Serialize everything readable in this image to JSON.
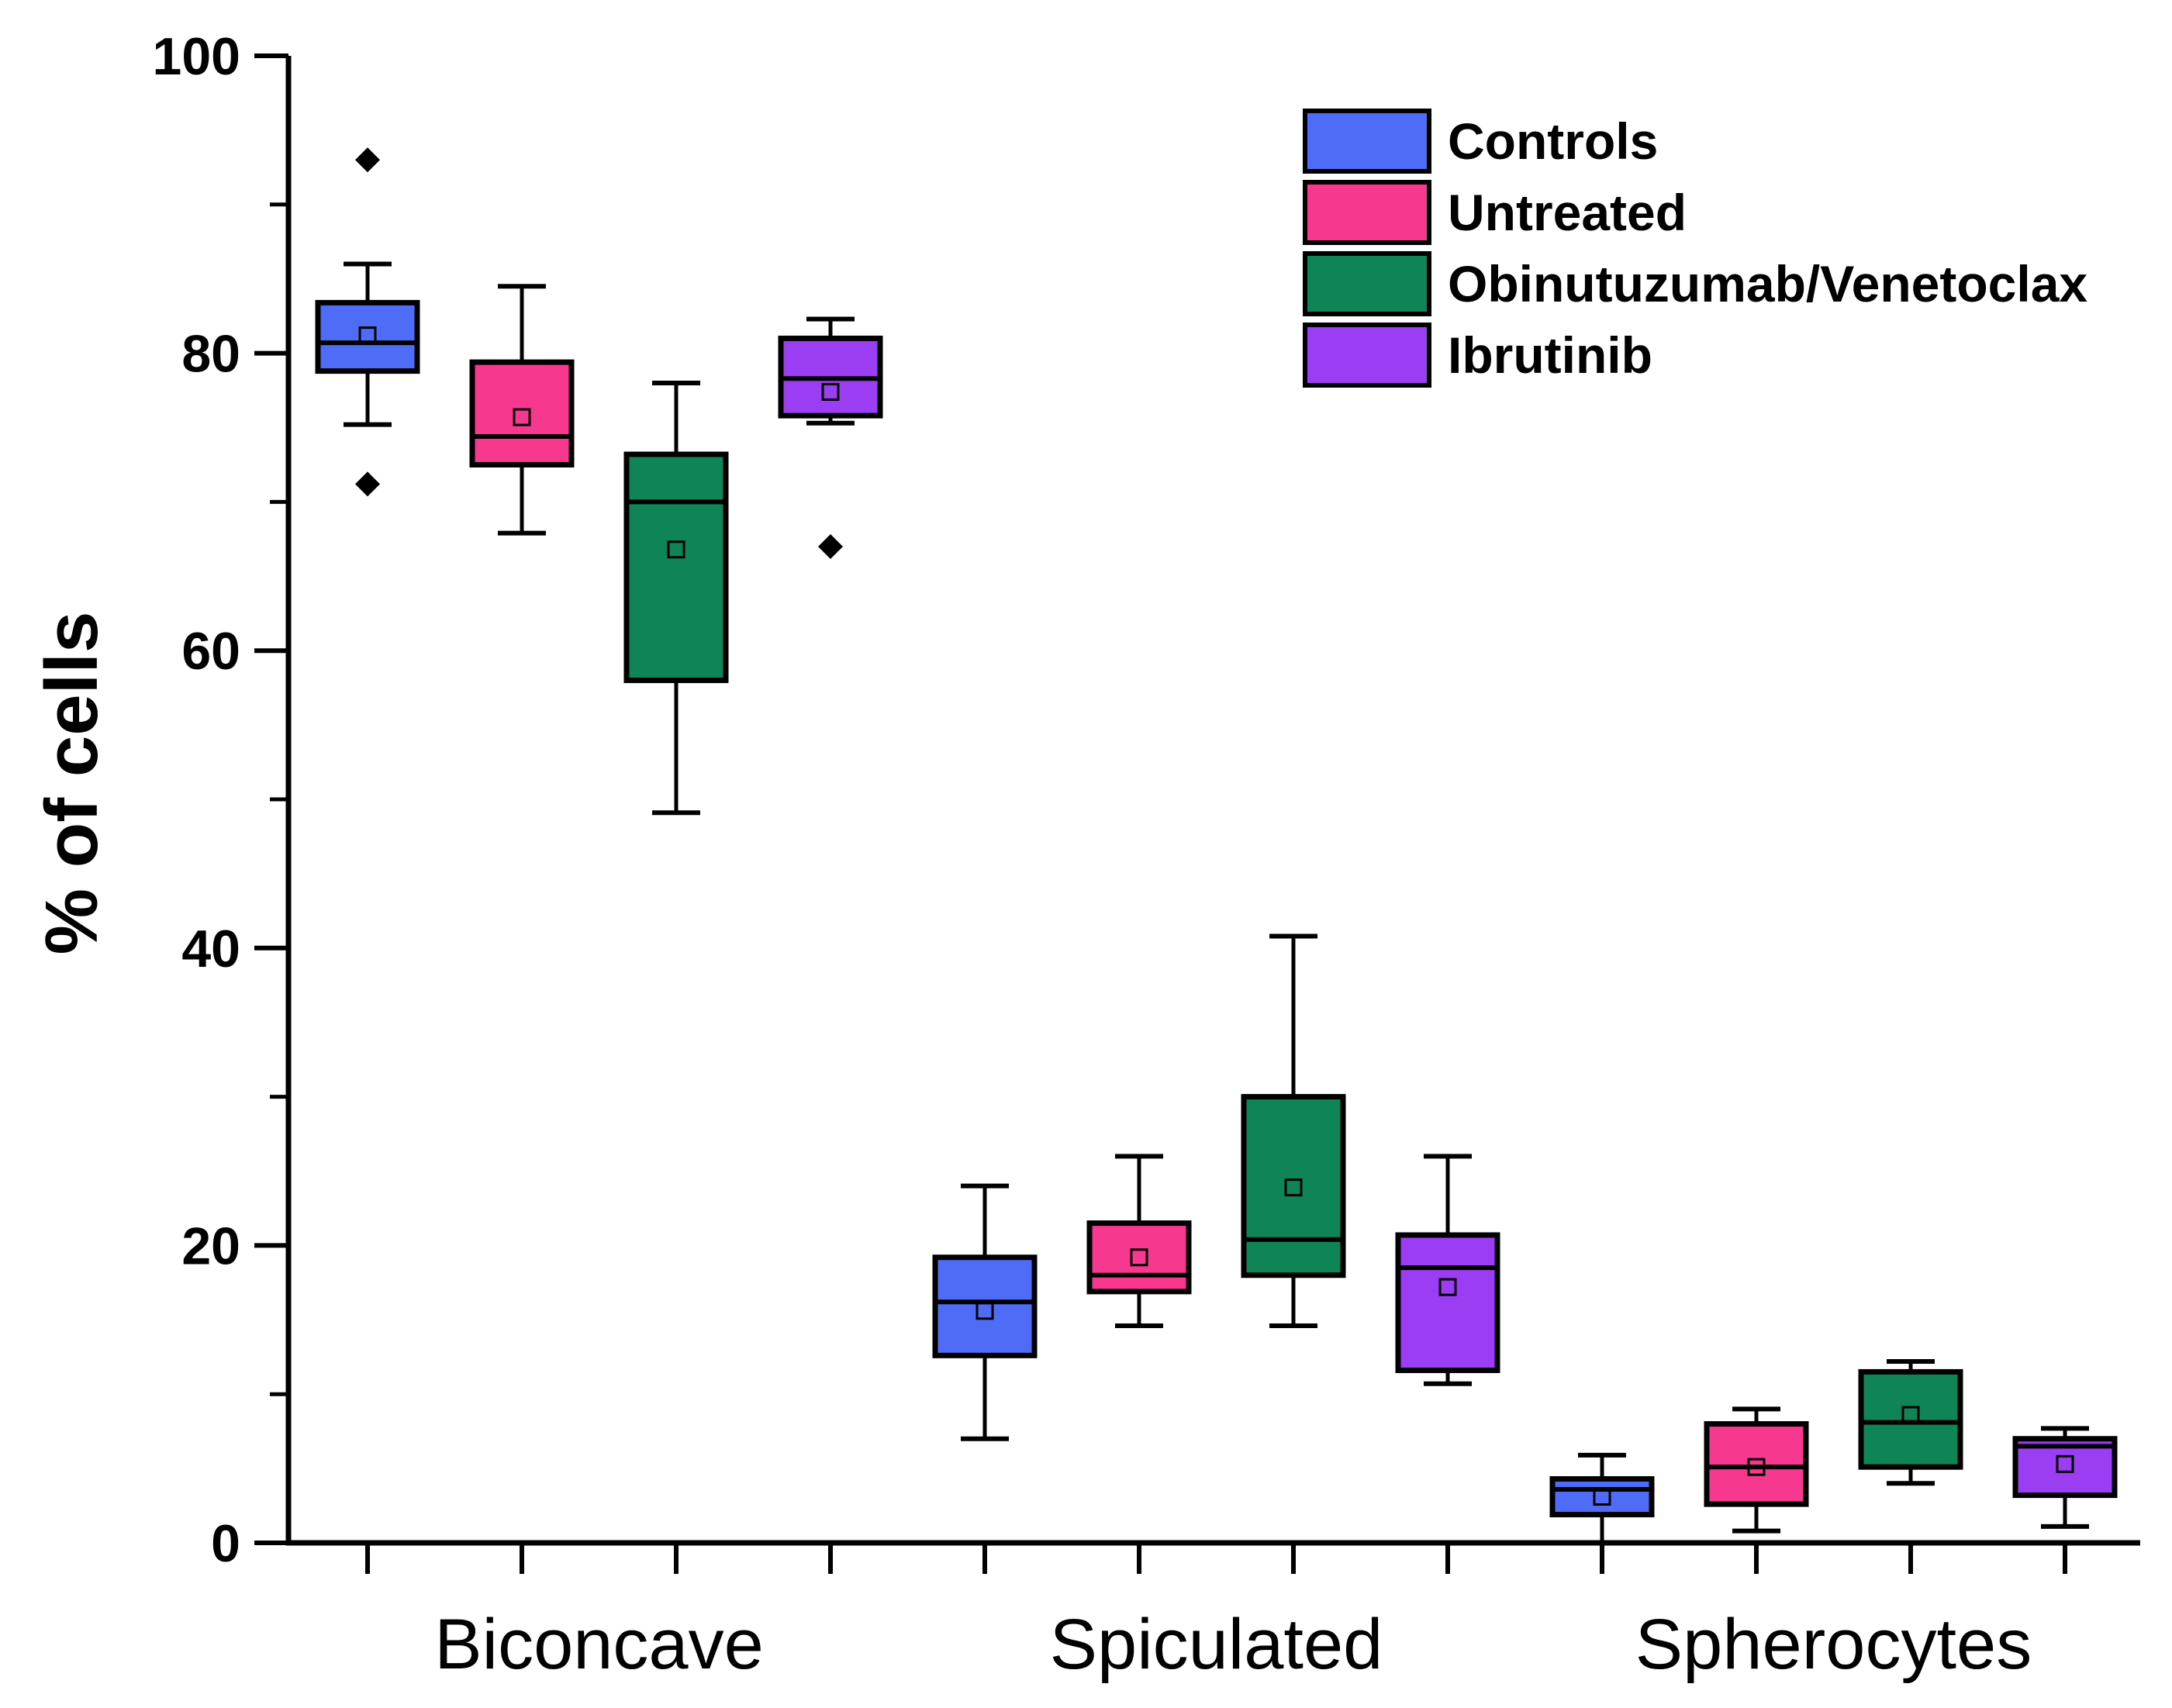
{
  "chart_data": {
    "type": "box",
    "title": "",
    "ylabel": "% of cells",
    "xlabel": "",
    "ylim": [
      0,
      100
    ],
    "yticks": [
      0,
      20,
      40,
      60,
      80,
      100
    ],
    "categories": [
      "Biconcave",
      "Spiculated",
      "Spherocytes"
    ],
    "legend_position": "top-right",
    "series": [
      {
        "name": "Controls",
        "color": "#4f6cf7",
        "boxes": [
          {
            "category": "Biconcave",
            "whisker_low": 75.2,
            "q1": 78.8,
            "median": 80.7,
            "q3": 83.4,
            "whisker_high": 86.0,
            "mean": 81.2,
            "outliers": [
              93.0,
              71.2
            ]
          },
          {
            "category": "Spiculated",
            "whisker_low": 7.0,
            "q1": 12.6,
            "median": 16.2,
            "q3": 19.2,
            "whisker_high": 24.0,
            "mean": 15.6,
            "outliers": []
          },
          {
            "category": "Spherocytes",
            "whisker_low": 0.0,
            "q1": 1.9,
            "median": 3.6,
            "q3": 4.3,
            "whisker_high": 5.9,
            "mean": 3.1,
            "outliers": []
          }
        ]
      },
      {
        "name": "Untreated",
        "color": "#f7388f",
        "boxes": [
          {
            "category": "Biconcave",
            "whisker_low": 67.9,
            "q1": 72.5,
            "median": 74.4,
            "q3": 79.4,
            "whisker_high": 84.5,
            "mean": 75.7,
            "outliers": []
          },
          {
            "category": "Spiculated",
            "whisker_low": 14.6,
            "q1": 16.9,
            "median": 18.0,
            "q3": 21.5,
            "whisker_high": 26.0,
            "mean": 19.2,
            "outliers": []
          },
          {
            "category": "Spherocytes",
            "whisker_low": 0.8,
            "q1": 2.6,
            "median": 5.1,
            "q3": 8.0,
            "whisker_high": 9.0,
            "mean": 5.1,
            "outliers": []
          }
        ]
      },
      {
        "name": "Obinutuzumab/Venetoclax",
        "color": "#0f8456",
        "boxes": [
          {
            "category": "Biconcave",
            "whisker_low": 49.1,
            "q1": 58.0,
            "median": 70.0,
            "q3": 73.2,
            "whisker_high": 78.0,
            "mean": 66.8,
            "outliers": []
          },
          {
            "category": "Spiculated",
            "whisker_low": 14.6,
            "q1": 18.0,
            "median": 20.4,
            "q3": 30.0,
            "whisker_high": 40.8,
            "mean": 23.9,
            "outliers": []
          },
          {
            "category": "Spherocytes",
            "whisker_low": 4.0,
            "q1": 5.1,
            "median": 8.1,
            "q3": 11.5,
            "whisker_high": 12.2,
            "mean": 8.6,
            "outliers": []
          }
        ]
      },
      {
        "name": "Ibrutinib",
        "color": "#9b3df2",
        "boxes": [
          {
            "category": "Biconcave",
            "whisker_low": 75.3,
            "q1": 75.8,
            "median": 78.3,
            "q3": 81.0,
            "whisker_high": 82.3,
            "mean": 77.4,
            "outliers": [
              67.0
            ]
          },
          {
            "category": "Spiculated",
            "whisker_low": 10.7,
            "q1": 11.6,
            "median": 18.5,
            "q3": 20.7,
            "whisker_high": 26.0,
            "mean": 17.2,
            "outliers": []
          },
          {
            "category": "Spherocytes",
            "whisker_low": 1.1,
            "q1": 3.2,
            "median": 6.5,
            "q3": 7.0,
            "whisker_high": 7.7,
            "mean": 5.3,
            "outliers": []
          }
        ]
      }
    ]
  }
}
